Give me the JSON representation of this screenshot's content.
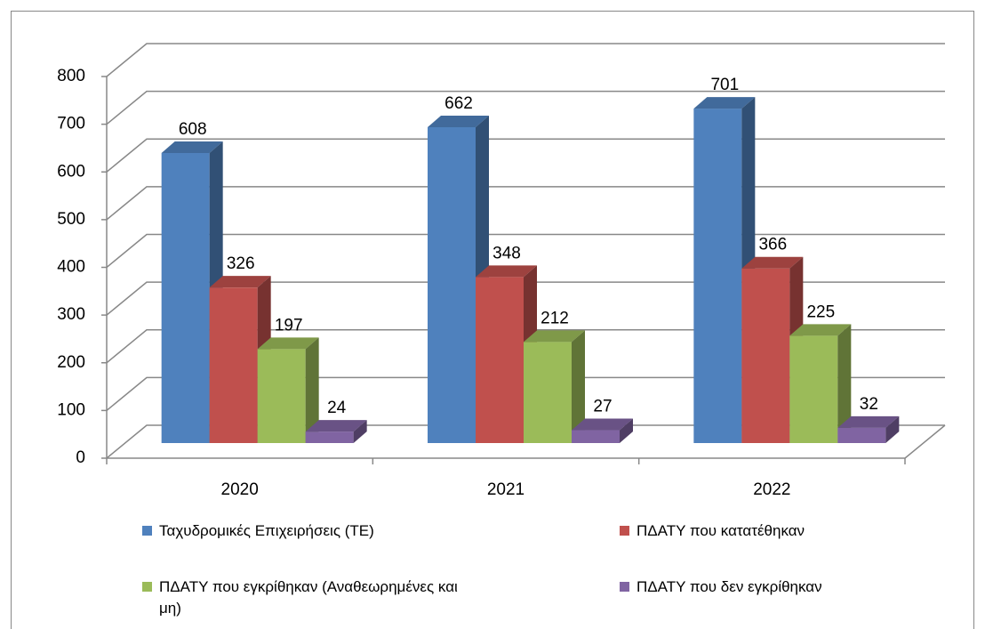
{
  "chart_data": {
    "type": "bar3d",
    "categories": [
      "2020",
      "2021",
      "2022"
    ],
    "series": [
      {
        "name": "Ταχυδρομικές Επιχειρήσεις (ΤΕ)",
        "color": "#4f81bd",
        "values": [
          608,
          662,
          701
        ]
      },
      {
        "name": "ΠΔΑΤΥ που κατατέθηκαν",
        "color": "#c0504d",
        "values": [
          326,
          348,
          366
        ]
      },
      {
        "name": "ΠΔΑΤΥ που εγκρίθηκαν (Αναθεωρημένες και μη)",
        "color": "#9bbb59",
        "values": [
          197,
          212,
          225
        ]
      },
      {
        "name": "ΠΔΑΤΥ που δεν εγκρίθηκαν",
        "color": "#8064a2",
        "values": [
          24,
          27,
          32
        ]
      }
    ],
    "ylim": [
      0,
      800
    ],
    "yticks": [
      0,
      100,
      200,
      300,
      400,
      500,
      600,
      700,
      800
    ],
    "grid": true,
    "legend": "bottom"
  }
}
